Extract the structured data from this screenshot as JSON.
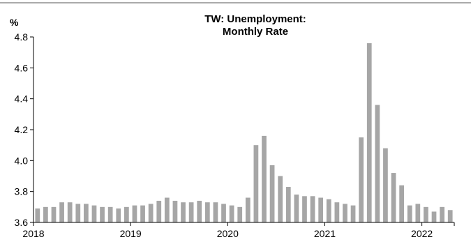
{
  "chart_data": {
    "type": "bar",
    "title": "TW: Unemployment:",
    "subtitle": "Monthly Rate",
    "ylabel": "%",
    "xlabel": "",
    "ylim": [
      3.6,
      4.8
    ],
    "yticks": [
      "3.6",
      "3.8",
      "4.0",
      "4.2",
      "4.4",
      "4.6",
      "4.8"
    ],
    "xticks": [
      "2018",
      "2019",
      "2020",
      "2021",
      "2022"
    ],
    "bar_color": "#a6a6a6",
    "grid": false,
    "values": [
      3.69,
      3.7,
      3.7,
      3.73,
      3.73,
      3.72,
      3.72,
      3.71,
      3.7,
      3.7,
      3.69,
      3.7,
      3.71,
      3.71,
      3.72,
      3.74,
      3.76,
      3.74,
      3.73,
      3.73,
      3.74,
      3.73,
      3.73,
      3.72,
      3.71,
      3.7,
      3.76,
      4.1,
      4.16,
      3.97,
      3.9,
      3.83,
      3.78,
      3.77,
      3.77,
      3.76,
      3.75,
      3.73,
      3.72,
      3.71,
      4.15,
      4.76,
      4.36,
      4.08,
      3.92,
      3.84,
      3.71,
      3.72,
      3.7,
      3.67,
      3.7,
      3.68
    ]
  }
}
